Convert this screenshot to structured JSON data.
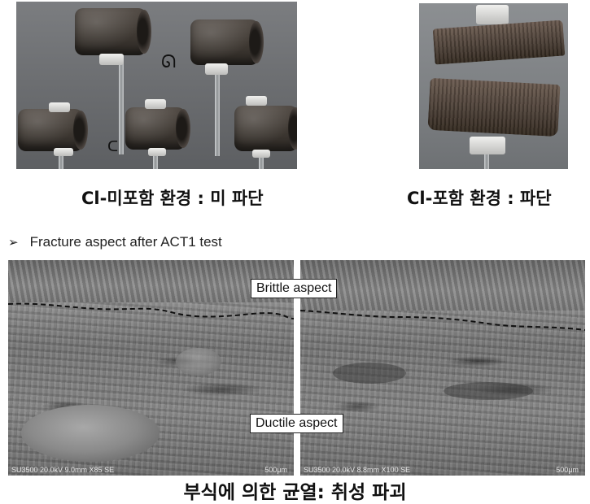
{
  "photos": {
    "left_caption": "Cl-미포함 환경 : 미 파단",
    "right_caption": "Cl-포함 환경 : 파단"
  },
  "section": {
    "bullet_icon": "arrow-bullet-icon",
    "title": "Fracture aspect after ACT1 test"
  },
  "sem": {
    "left_info": "SU3500 20.0kV 9.0mm X85 SE",
    "left_scale": "500μm",
    "right_info": "SU3500 20.0kV 8.8mm X100 SE",
    "right_scale": "500μm",
    "label_brittle": "Brittle aspect",
    "label_ductile": "Ductile aspect"
  },
  "bottom_caption": "부식에 의한 균열: 취성 파괴"
}
